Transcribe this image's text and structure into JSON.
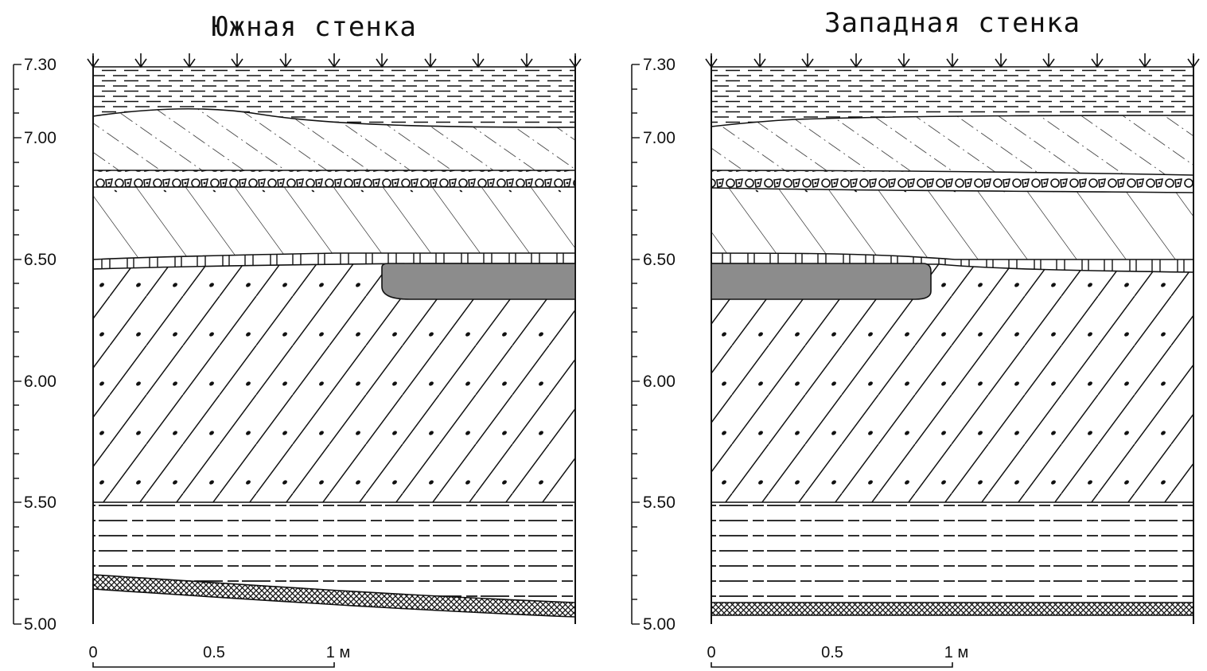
{
  "panels": [
    {
      "title": "Южная стенка",
      "ticks": [
        "7.30",
        "7.00",
        "6.50",
        "6.00",
        "5.50",
        "5.00"
      ],
      "scale": [
        "0",
        "0.5",
        "1 м"
      ]
    },
    {
      "title": "Западная стенка",
      "ticks": [
        "7.30",
        "7.00",
        "6.50",
        "6.00",
        "5.50",
        "5.00"
      ],
      "scale": [
        "0",
        "0.5",
        "1 м"
      ]
    }
  ],
  "colors": {
    "ink": "#111111",
    "lens_fill": "#8c8c8c"
  }
}
